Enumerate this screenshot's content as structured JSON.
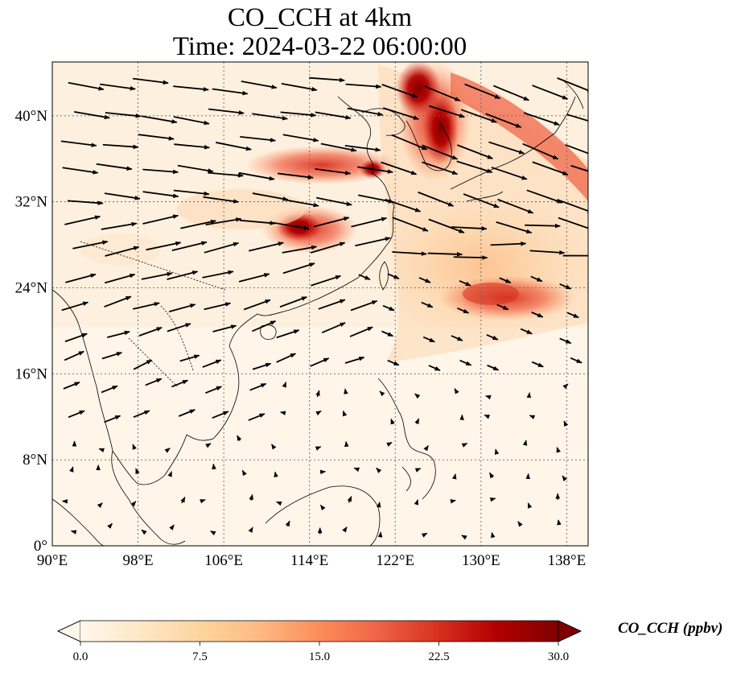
{
  "title": {
    "line1": "CO_CCH at 4km",
    "line2": "Time: 2024-03-22 06:00:00"
  },
  "map": {
    "variable": "CO_CCH",
    "level": "4km",
    "lon_range": [
      90,
      140
    ],
    "lat_range": [
      0,
      45
    ],
    "gridline_style": "dotted",
    "lon_ticks": [
      {
        "value": 90,
        "label": "90°E"
      },
      {
        "value": 98,
        "label": "98°E"
      },
      {
        "value": 106,
        "label": "106°E"
      },
      {
        "value": 114,
        "label": "114°E"
      },
      {
        "value": 122,
        "label": "122°E"
      },
      {
        "value": 130,
        "label": "130°E"
      },
      {
        "value": 138,
        "label": "138°E"
      }
    ],
    "lat_ticks": [
      {
        "value": 0,
        "label": "0°"
      },
      {
        "value": 8,
        "label": "8°N"
      },
      {
        "value": 16,
        "label": "16°N"
      },
      {
        "value": 24,
        "label": "24°N"
      },
      {
        "value": 32,
        "label": "32°N"
      },
      {
        "value": 40,
        "label": "40°N"
      }
    ],
    "field_colormap": "OrRd",
    "high_concentration_regions": [
      {
        "name": "korea-yellow-sea plume",
        "lon": 125.5,
        "lat": 38,
        "value": 30
      },
      {
        "name": "central china plume",
        "lon": 113,
        "lat": 30,
        "value": 30
      },
      {
        "name": "east china plume",
        "lon": 117,
        "lat": 35,
        "value": 20
      },
      {
        "name": "west pacific plume",
        "lon": 132,
        "lat": 22.5,
        "value": 20
      }
    ],
    "wind_vectors_shown": true
  },
  "colorbar": {
    "label": "CO_CCH (ppbv)",
    "min": 0.0,
    "max": 30.0,
    "extend": "both",
    "ticks": [
      {
        "value": 0.0,
        "label": "0.0"
      },
      {
        "value": 7.5,
        "label": "7.5"
      },
      {
        "value": 15.0,
        "label": "15.0"
      },
      {
        "value": 22.5,
        "label": "22.5"
      },
      {
        "value": 30.0,
        "label": "30.0"
      }
    ],
    "colors": [
      "#fff7ec",
      "#fdd49e",
      "#fc8d59",
      "#d7301f",
      "#7f0000"
    ]
  }
}
